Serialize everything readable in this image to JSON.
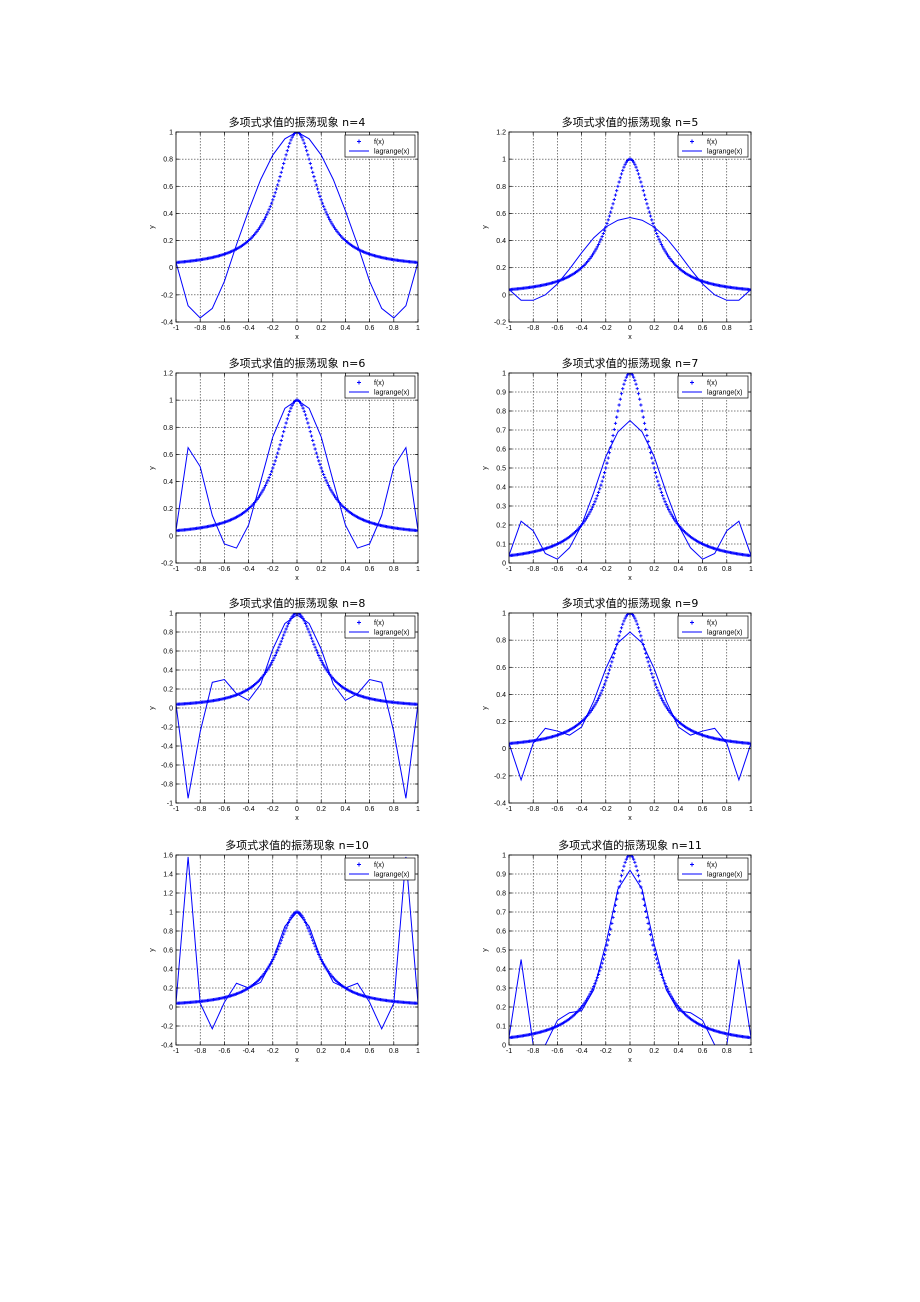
{
  "figure": {
    "layout": "4x2 subplots"
  },
  "colors": {
    "series": "#0000ff",
    "axes": "#000000",
    "grid": "#000000",
    "background": "#ffffff"
  },
  "chart_data": [
    {
      "type": "line",
      "n": 4,
      "title": "多项式求值的振荡现象 n=4",
      "xlabel": "x",
      "ylabel": "y",
      "xlim": [
        -1,
        1
      ],
      "ylim": [
        -0.4,
        1
      ],
      "xticks": [
        -1,
        -0.8,
        -0.6,
        -0.4,
        -0.2,
        0,
        0.2,
        0.4,
        0.6,
        0.8,
        1
      ],
      "xtick_labels": [
        "-1",
        "-0.8",
        "-0.6",
        "-0.4",
        "-0.2",
        "0",
        "0.2",
        "0.4",
        "0.6",
        "0.8",
        "1"
      ],
      "yticks": [
        -0.4,
        -0.2,
        0,
        0.2,
        0.4,
        0.6,
        0.8,
        1
      ],
      "ytick_labels": [
        "-0.4",
        "-0.2",
        "0",
        "0.2",
        "0.4",
        "0.6",
        "0.8",
        "1"
      ],
      "legend": [
        "f(x)",
        "lagrange(x)"
      ],
      "legend_position": "top-right",
      "series": [
        {
          "name": "f(x)",
          "style": "markers",
          "function": "1/(1+25x^2)",
          "x_start": -1,
          "x_end": 1,
          "x_step": 0.01
        },
        {
          "name": "lagrange(x)",
          "style": "line",
          "x": [
            -1,
            -0.9,
            -0.8,
            -0.7,
            -0.6,
            -0.5,
            -0.4,
            -0.3,
            -0.2,
            -0.1,
            0,
            0.1,
            0.2,
            0.3,
            0.4,
            0.5,
            0.6,
            0.7,
            0.8,
            0.9,
            1
          ],
          "y": [
            0.04,
            -0.28,
            -0.37,
            -0.3,
            -0.1,
            0.17,
            0.42,
            0.65,
            0.83,
            0.95,
            1,
            0.95,
            0.83,
            0.65,
            0.42,
            0.17,
            -0.1,
            -0.3,
            -0.37,
            -0.28,
            0.04
          ]
        }
      ]
    },
    {
      "type": "line",
      "n": 5,
      "title": "多项式求值的振荡现象 n=5",
      "xlabel": "x",
      "ylabel": "y",
      "xlim": [
        -1,
        1
      ],
      "ylim": [
        -0.2,
        1.2
      ],
      "xticks": [
        -1,
        -0.8,
        -0.6,
        -0.4,
        -0.2,
        0,
        0.2,
        0.4,
        0.6,
        0.8,
        1
      ],
      "xtick_labels": [
        "-1",
        "-0.8",
        "-0.6",
        "-0.4",
        "-0.2",
        "0",
        "0.2",
        "0.4",
        "0.6",
        "0.8",
        "1"
      ],
      "yticks": [
        -0.2,
        0,
        0.2,
        0.4,
        0.6,
        0.8,
        1,
        1.2
      ],
      "ytick_labels": [
        "-0.2",
        "0",
        "0.2",
        "0.4",
        "0.6",
        "0.8",
        "1",
        "1.2"
      ],
      "legend": [
        "f(x)",
        "lagrange(x)"
      ],
      "legend_position": "top-right",
      "series": [
        {
          "name": "f(x)",
          "style": "markers",
          "function": "1/(1+25x^2)",
          "x_start": -1,
          "x_end": 1,
          "x_step": 0.01
        },
        {
          "name": "lagrange(x)",
          "style": "line",
          "x": [
            -1,
            -0.9,
            -0.8,
            -0.7,
            -0.6,
            -0.5,
            -0.4,
            -0.3,
            -0.2,
            -0.1,
            0,
            0.1,
            0.2,
            0.3,
            0.4,
            0.5,
            0.6,
            0.7,
            0.8,
            0.9,
            1
          ],
          "y": [
            0.04,
            -0.04,
            -0.04,
            0,
            0.08,
            0.19,
            0.31,
            0.42,
            0.5,
            0.55,
            0.57,
            0.55,
            0.5,
            0.42,
            0.31,
            0.19,
            0.08,
            0,
            -0.04,
            -0.04,
            0.04
          ]
        }
      ]
    },
    {
      "type": "line",
      "n": 6,
      "title": "多项式求值的振荡现象 n=6",
      "xlabel": "x",
      "ylabel": "y",
      "xlim": [
        -1,
        1
      ],
      "ylim": [
        -0.2,
        1.2
      ],
      "xticks": [
        -1,
        -0.8,
        -0.6,
        -0.4,
        -0.2,
        0,
        0.2,
        0.4,
        0.6,
        0.8,
        1
      ],
      "xtick_labels": [
        "-1",
        "-0.8",
        "-0.6",
        "-0.4",
        "-0.2",
        "0",
        "0.2",
        "0.4",
        "0.6",
        "0.8",
        "1"
      ],
      "yticks": [
        -0.2,
        0,
        0.2,
        0.4,
        0.6,
        0.8,
        1,
        1.2
      ],
      "ytick_labels": [
        "-0.2",
        "0",
        "0.2",
        "0.4",
        "0.6",
        "0.8",
        "1",
        "1.2"
      ],
      "legend": [
        "f(x)",
        "lagrange(x)"
      ],
      "legend_position": "top-right",
      "series": [
        {
          "name": "f(x)",
          "style": "markers",
          "function": "1/(1+25x^2)",
          "x_start": -1,
          "x_end": 1,
          "x_step": 0.01
        },
        {
          "name": "lagrange(x)",
          "style": "line",
          "x": [
            -1,
            -0.9,
            -0.8,
            -0.7,
            -0.6,
            -0.5,
            -0.4,
            -0.3,
            -0.2,
            -0.1,
            0,
            0.1,
            0.2,
            0.3,
            0.4,
            0.5,
            0.6,
            0.7,
            0.8,
            0.9,
            1
          ],
          "y": [
            0.04,
            0.65,
            0.51,
            0.15,
            -0.06,
            -0.09,
            0.08,
            0.4,
            0.73,
            0.94,
            1,
            0.94,
            0.73,
            0.4,
            0.08,
            -0.09,
            -0.06,
            0.15,
            0.51,
            0.65,
            0.04
          ]
        }
      ]
    },
    {
      "type": "line",
      "n": 7,
      "title": "多项式求值的振荡现象 n=7",
      "xlabel": "x",
      "ylabel": "y",
      "xlim": [
        -1,
        1
      ],
      "ylim": [
        0,
        1
      ],
      "xticks": [
        -1,
        -0.8,
        -0.6,
        -0.4,
        -0.2,
        0,
        0.2,
        0.4,
        0.6,
        0.8,
        1
      ],
      "xtick_labels": [
        "-1",
        "-0.8",
        "-0.6",
        "-0.4",
        "-0.2",
        "0",
        "0.2",
        "0.4",
        "0.6",
        "0.8",
        "1"
      ],
      "yticks": [
        0,
        0.1,
        0.2,
        0.3,
        0.4,
        0.5,
        0.6,
        0.7,
        0.8,
        0.9,
        1
      ],
      "ytick_labels": [
        "0",
        "0.1",
        "0.2",
        "0.3",
        "0.4",
        "0.5",
        "0.6",
        "0.7",
        "0.8",
        "0.9",
        "1"
      ],
      "legend": [
        "f(x)",
        "lagrange(x)"
      ],
      "legend_position": "top-right",
      "series": [
        {
          "name": "f(x)",
          "style": "markers",
          "function": "1/(1+25x^2)",
          "x_start": -1,
          "x_end": 1,
          "x_step": 0.01
        },
        {
          "name": "lagrange(x)",
          "style": "line",
          "x": [
            -1,
            -0.9,
            -0.8,
            -0.7,
            -0.6,
            -0.5,
            -0.4,
            -0.3,
            -0.2,
            -0.1,
            0,
            0.1,
            0.2,
            0.3,
            0.4,
            0.5,
            0.6,
            0.7,
            0.8,
            0.9,
            1
          ],
          "y": [
            0.04,
            0.22,
            0.17,
            0.05,
            0.02,
            0.08,
            0.2,
            0.37,
            0.56,
            0.69,
            0.75,
            0.69,
            0.56,
            0.37,
            0.2,
            0.08,
            0.02,
            0.05,
            0.17,
            0.22,
            0.04
          ]
        }
      ]
    },
    {
      "type": "line",
      "n": 8,
      "title": "多项式求值的振荡现象 n=8",
      "xlabel": "x",
      "ylabel": "y",
      "xlim": [
        -1,
        1
      ],
      "ylim": [
        -1,
        1
      ],
      "xticks": [
        -1,
        -0.8,
        -0.6,
        -0.4,
        -0.2,
        0,
        0.2,
        0.4,
        0.6,
        0.8,
        1
      ],
      "xtick_labels": [
        "-1",
        "-0.8",
        "-0.6",
        "-0.4",
        "-0.2",
        "0",
        "0.2",
        "0.4",
        "0.6",
        "0.8",
        "1"
      ],
      "yticks": [
        -1,
        -0.8,
        -0.6,
        -0.4,
        -0.2,
        0,
        0.2,
        0.4,
        0.6,
        0.8,
        1
      ],
      "ytick_labels": [
        "-1",
        "-0.8",
        "-0.6",
        "-0.4",
        "-0.2",
        "0",
        "0.2",
        "0.4",
        "0.6",
        "0.8",
        "1"
      ],
      "legend": [
        "f(x)",
        "lagrange(x)"
      ],
      "legend_position": "top-right",
      "series": [
        {
          "name": "f(x)",
          "style": "markers",
          "function": "1/(1+25x^2)",
          "x_start": -1,
          "x_end": 1,
          "x_step": 0.01
        },
        {
          "name": "lagrange(x)",
          "style": "line",
          "x": [
            -1,
            -0.95,
            -0.9,
            -0.8,
            -0.7,
            -0.6,
            -0.5,
            -0.4,
            -0.3,
            -0.2,
            -0.1,
            0,
            0.1,
            0.2,
            0.3,
            0.4,
            0.5,
            0.6,
            0.7,
            0.8,
            0.9,
            0.95,
            1
          ],
          "y": [
            0.04,
            -0.45,
            -0.95,
            -0.25,
            0.27,
            0.3,
            0.15,
            0.08,
            0.25,
            0.62,
            0.89,
            0.98,
            0.89,
            0.62,
            0.25,
            0.08,
            0.15,
            0.3,
            0.27,
            -0.25,
            -0.95,
            -0.45,
            0.04
          ]
        }
      ]
    },
    {
      "type": "line",
      "n": 9,
      "title": "多项式求值的振荡现象 n=9",
      "xlabel": "x",
      "ylabel": "y",
      "xlim": [
        -1,
        1
      ],
      "ylim": [
        -0.4,
        1
      ],
      "xticks": [
        -1,
        -0.8,
        -0.6,
        -0.4,
        -0.2,
        0,
        0.2,
        0.4,
        0.6,
        0.8,
        1
      ],
      "xtick_labels": [
        "-1",
        "-0.8",
        "-0.6",
        "-0.4",
        "-0.2",
        "0",
        "0.2",
        "0.4",
        "0.6",
        "0.8",
        "1"
      ],
      "yticks": [
        -0.4,
        -0.2,
        0,
        0.2,
        0.4,
        0.6,
        0.8,
        1
      ],
      "ytick_labels": [
        "-0.4",
        "-0.2",
        "0",
        "0.2",
        "0.4",
        "0.6",
        "0.8",
        "1"
      ],
      "legend": [
        "f(x)",
        "lagrange(x)"
      ],
      "legend_position": "top-right",
      "series": [
        {
          "name": "f(x)",
          "style": "markers",
          "function": "1/(1+25x^2)",
          "x_start": -1,
          "x_end": 1,
          "x_step": 0.01
        },
        {
          "name": "lagrange(x)",
          "style": "line",
          "x": [
            -1,
            -0.9,
            -0.8,
            -0.7,
            -0.6,
            -0.5,
            -0.4,
            -0.3,
            -0.2,
            -0.1,
            0,
            0.1,
            0.2,
            0.3,
            0.4,
            0.5,
            0.6,
            0.7,
            0.8,
            0.9,
            1
          ],
          "y": [
            0.04,
            -0.23,
            0.04,
            0.15,
            0.13,
            0.1,
            0.16,
            0.35,
            0.59,
            0.78,
            0.86,
            0.78,
            0.59,
            0.35,
            0.16,
            0.1,
            0.13,
            0.15,
            0.04,
            -0.23,
            0.04
          ]
        }
      ]
    },
    {
      "type": "line",
      "n": 10,
      "title": "多项式求值的振荡现象 n=10",
      "xlabel": "x",
      "ylabel": "y",
      "xlim": [
        -1,
        1
      ],
      "ylim": [
        -0.4,
        1.6
      ],
      "xticks": [
        -1,
        -0.8,
        -0.6,
        -0.4,
        -0.2,
        0,
        0.2,
        0.4,
        0.6,
        0.8,
        1
      ],
      "xtick_labels": [
        "-1",
        "-0.8",
        "-0.6",
        "-0.4",
        "-0.2",
        "0",
        "0.2",
        "0.4",
        "0.6",
        "0.8",
        "1"
      ],
      "yticks": [
        -0.4,
        -0.2,
        0,
        0.2,
        0.4,
        0.6,
        0.8,
        1,
        1.2,
        1.4,
        1.6
      ],
      "ytick_labels": [
        "-0.4",
        "-0.2",
        "0",
        "0.2",
        "0.4",
        "0.6",
        "0.8",
        "1",
        "1.2",
        "1.4",
        "1.6"
      ],
      "legend": [
        "f(x)",
        "lagrange(x)"
      ],
      "legend_position": "top-right",
      "series": [
        {
          "name": "f(x)",
          "style": "markers",
          "function": "1/(1+25x^2)",
          "x_start": -1,
          "x_end": 1,
          "x_step": 0.01
        },
        {
          "name": "lagrange(x)",
          "style": "line",
          "x": [
            -1,
            -0.9,
            -0.8,
            -0.7,
            -0.6,
            -0.5,
            -0.4,
            -0.3,
            -0.2,
            -0.1,
            0,
            0.1,
            0.2,
            0.3,
            0.4,
            0.5,
            0.6,
            0.7,
            0.8,
            0.9,
            1
          ],
          "y": [
            0.04,
            1.58,
            0.04,
            -0.23,
            0.05,
            0.25,
            0.2,
            0.26,
            0.5,
            0.85,
            1,
            0.85,
            0.5,
            0.26,
            0.2,
            0.25,
            0.05,
            -0.23,
            0.04,
            1.58,
            0.04
          ]
        }
      ]
    },
    {
      "type": "line",
      "n": 11,
      "title": "多项式求值的振荡现象 n=11",
      "xlabel": "x",
      "ylabel": "y",
      "xlim": [
        -1,
        1
      ],
      "ylim": [
        0,
        1
      ],
      "xticks": [
        -1,
        -0.8,
        -0.6,
        -0.4,
        -0.2,
        0,
        0.2,
        0.4,
        0.6,
        0.8,
        1
      ],
      "xtick_labels": [
        "-1",
        "-0.8",
        "-0.6",
        "-0.4",
        "-0.2",
        "0",
        "0.2",
        "0.4",
        "0.6",
        "0.8",
        "1"
      ],
      "yticks": [
        0,
        0.1,
        0.2,
        0.3,
        0.4,
        0.5,
        0.6,
        0.7,
        0.8,
        0.9,
        1
      ],
      "ytick_labels": [
        "0",
        "0.1",
        "0.2",
        "0.3",
        "0.4",
        "0.5",
        "0.6",
        "0.7",
        "0.8",
        "0.9",
        "1"
      ],
      "legend": [
        "f(x)",
        "lagrange(x)"
      ],
      "legend_position": "top-right",
      "series": [
        {
          "name": "f(x)",
          "style": "markers",
          "function": "1/(1+25x^2)",
          "x_start": -1,
          "x_end": 1,
          "x_step": 0.01
        },
        {
          "name": "lagrange(x)",
          "style": "line",
          "x": [
            -1,
            -0.9,
            -0.8,
            -0.7,
            -0.6,
            -0.5,
            -0.4,
            -0.3,
            -0.2,
            -0.1,
            0,
            0.1,
            0.2,
            0.3,
            0.4,
            0.5,
            0.6,
            0.7,
            0.8,
            0.9,
            1
          ],
          "y": [
            0.04,
            0.45,
            0.0,
            0.0,
            0.13,
            0.17,
            0.18,
            0.29,
            0.53,
            0.82,
            0.92,
            0.82,
            0.53,
            0.29,
            0.18,
            0.17,
            0.13,
            0.0,
            0.0,
            0.45,
            0.04
          ]
        }
      ]
    }
  ]
}
